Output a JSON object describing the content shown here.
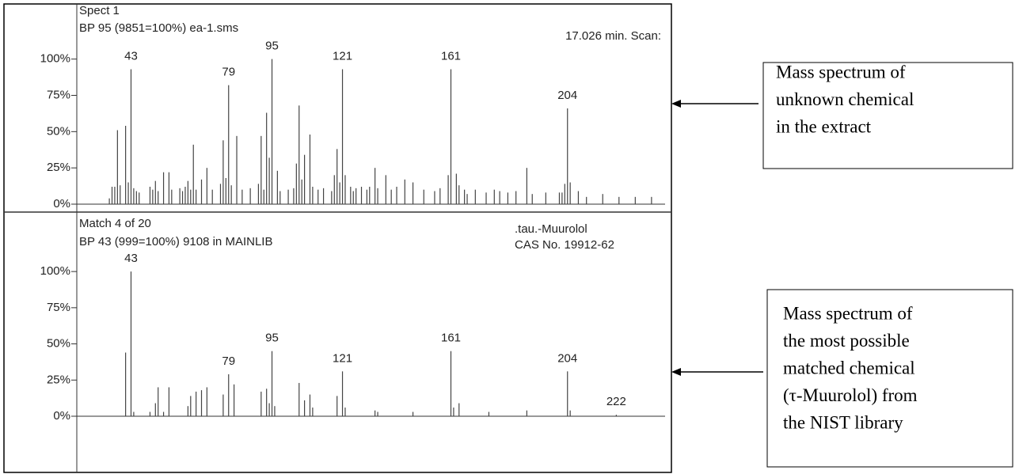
{
  "chart_data": [
    {
      "type": "bar",
      "annotations": [
        "Spect 1",
        "BP 95 (9851=100%) ea-1.sms",
        "17.026 min. Scan:"
      ],
      "x": [
        35,
        36,
        37,
        38,
        39,
        41,
        42,
        43,
        44,
        45,
        46,
        50,
        51,
        52,
        53,
        55,
        57,
        58,
        61,
        62,
        63,
        64,
        65,
        66,
        67,
        69,
        71,
        73,
        76,
        77,
        78,
        79,
        80,
        82,
        84,
        87,
        90,
        91,
        92,
        93,
        94,
        95,
        97,
        98,
        101,
        103,
        104,
        105,
        106,
        107,
        109,
        110,
        112,
        114,
        117,
        118,
        119,
        120,
        121,
        122,
        124,
        125,
        126,
        128,
        130,
        131,
        133,
        134,
        137,
        139,
        141,
        144,
        147,
        151,
        155,
        157,
        160,
        161,
        163,
        164,
        166,
        167,
        170,
        174,
        177,
        179,
        182,
        185,
        189,
        191,
        196,
        201,
        202,
        203,
        204,
        205,
        208,
        211,
        217,
        223,
        229,
        235
      ],
      "values": [
        4,
        12,
        12,
        51,
        13,
        54,
        15,
        93,
        11,
        9,
        8,
        12,
        10,
        16,
        9,
        22,
        22,
        10,
        11,
        9,
        12,
        16,
        10,
        41,
        10,
        17,
        25,
        10,
        14,
        44,
        18,
        82,
        13,
        47,
        10,
        11,
        14,
        47,
        10,
        63,
        32,
        100,
        23,
        9,
        10,
        11,
        28,
        68,
        17,
        34,
        48,
        12,
        10,
        11,
        9,
        20,
        38,
        15,
        93,
        20,
        12,
        9,
        11,
        12,
        10,
        12,
        25,
        11,
        20,
        10,
        12,
        17,
        15,
        10,
        9,
        11,
        20,
        93,
        21,
        13,
        10,
        7,
        10,
        8,
        10,
        9,
        8,
        9,
        25,
        7,
        8,
        8,
        8,
        14,
        66,
        15,
        9,
        5,
        7,
        5,
        5,
        5
      ],
      "peak_labels": [
        43,
        79,
        95,
        121,
        161,
        204
      ],
      "color": "#444",
      "xlim": [
        23,
        240
      ],
      "ylim": [
        0,
        138
      ],
      "yticks": [
        {
          "value": 0,
          "label": "0%"
        },
        {
          "value": 25,
          "label": "25%"
        },
        {
          "value": 50,
          "label": "50%"
        },
        {
          "value": 75,
          "label": "75%"
        },
        {
          "value": 100,
          "label": "100%"
        }
      ]
    },
    {
      "type": "bar",
      "annotations": [
        "Match 4 of 20",
        "BP 43 (999=100%) 9108 in MAINLIB",
        ".tau.-Muurolol",
        "CAS No. 19912-62"
      ],
      "x": [
        41,
        43,
        44,
        50,
        52,
        53,
        55,
        57,
        64,
        65,
        67,
        69,
        71,
        77,
        79,
        81,
        91,
        93,
        94,
        95,
        96,
        105,
        107,
        109,
        110,
        119,
        121,
        122,
        133,
        134,
        147,
        161,
        162,
        164,
        175,
        189,
        204,
        205,
        222
      ],
      "values": [
        44,
        100,
        3,
        3,
        9,
        20,
        3,
        20,
        7,
        14,
        17,
        18,
        20,
        15,
        29,
        22,
        17,
        19,
        9,
        45,
        7,
        23,
        11,
        15,
        6,
        14,
        31,
        6,
        4,
        3,
        3,
        45,
        6,
        9,
        3,
        4,
        31,
        4,
        1
      ],
      "peak_labels": [
        43,
        79,
        95,
        121,
        161,
        204,
        222
      ],
      "color": "#444",
      "xlim": [
        23,
        240
      ],
      "ylim": [
        0,
        140
      ],
      "yticks": [
        {
          "value": 0,
          "label": "0%"
        },
        {
          "value": 25,
          "label": "25%"
        },
        {
          "value": 50,
          "label": "50%"
        },
        {
          "value": 75,
          "label": "75%"
        },
        {
          "value": 100,
          "label": "100%"
        }
      ]
    }
  ],
  "callouts": [
    {
      "lines": [
        "Mass spectrum of",
        "unknown chemical",
        "in the extract"
      ]
    },
    {
      "lines": [
        "Mass spectrum of",
        "the most possible",
        "matched chemical",
        "(τ-Muurolol) from",
        "the NIST library"
      ]
    }
  ]
}
